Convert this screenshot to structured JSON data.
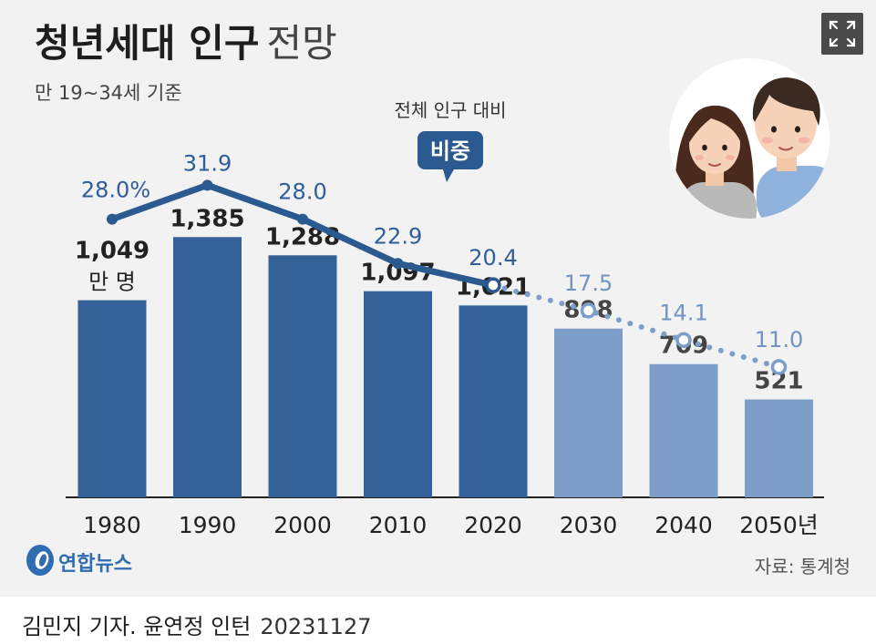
{
  "header": {
    "title_bold": "청년세대 인구",
    "title_light": "전망",
    "subtitle": "만 19~34세 기준"
  },
  "chart_data": {
    "type": "bar",
    "categories": [
      "1980",
      "1990",
      "2000",
      "2010",
      "2020",
      "2030",
      "2040",
      "2050"
    ],
    "x_tick_labels": [
      "1980",
      "1990",
      "2000",
      "2010",
      "2020",
      "2030",
      "2040",
      "2050년"
    ],
    "series": [
      {
        "values": [
          1049,
          1385,
          1288,
          1097,
          1021,
          898,
          709,
          521
        ],
        "value_labels": [
          "1,049",
          "1,385",
          "1,288",
          "1,097",
          "1,021",
          "898",
          "709",
          "521"
        ],
        "unit_label": "만 명",
        "projected_from_index": 5
      },
      {
        "type": "line",
        "values": [
          28.0,
          31.9,
          28.0,
          22.9,
          20.4,
          17.5,
          14.1,
          11.0
        ],
        "value_labels": [
          "28.0%",
          "31.9",
          "28.0",
          "22.9",
          "20.4",
          "17.5",
          "14.1",
          "11.0"
        ],
        "projected_from_index": 5
      }
    ],
    "line_annotation": {
      "caption": "전체 인구 대비",
      "badge": "비중"
    },
    "colors": {
      "bar_actual": "#336198",
      "bar_projected": "#7c9ec9",
      "line_actual": "#2b5a90",
      "line_projected": "#7c9ec9",
      "value_actual": "#222222",
      "value_projected": "#444444",
      "pct_actual": "#2f5d99",
      "pct_projected": "#6f93c4"
    }
  },
  "icons": {
    "expand": "expand-icon",
    "illustration": "young-couple-illustration",
    "logo": "yonhap-logo-icon"
  },
  "footer": {
    "logo_text": "연합뉴스",
    "source": "자료: 통계청",
    "credit": "김민지 기자. 윤연정 인턴",
    "date": "20231127"
  }
}
